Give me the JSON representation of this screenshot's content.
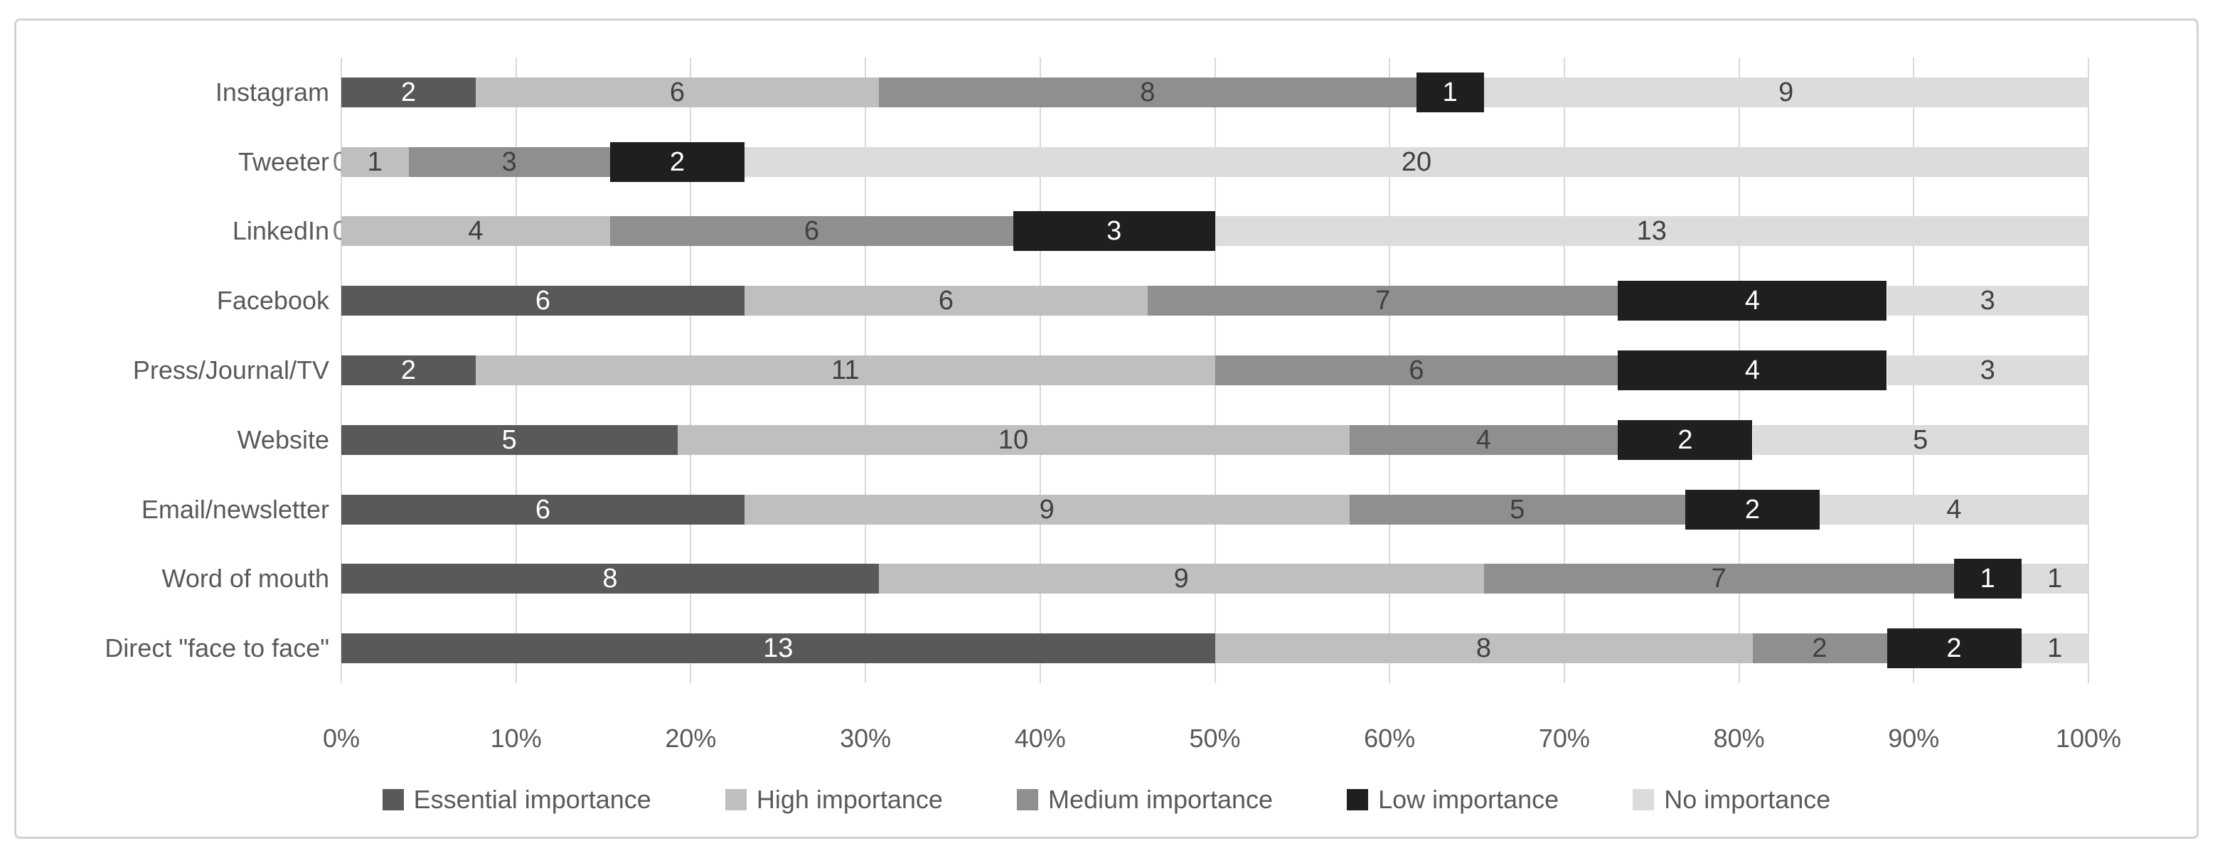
{
  "chart_data": {
    "type": "bar",
    "subtype": "stacked-100-horizontal",
    "title": "",
    "xlabel": "",
    "ylabel": "",
    "unit_total": 26,
    "grid": true,
    "legend_position": "bottom",
    "categories": [
      "Instagram",
      "Tweeter",
      "LinkedIn",
      "Facebook",
      "Press/Journal/TV",
      "Website",
      "Email/newsletter",
      "Word of mouth",
      "Direct \"face to face\""
    ],
    "series": [
      {
        "name": "Essential importance",
        "color": "#595959",
        "label_color": "#ffffff",
        "values": [
          2,
          0,
          0,
          6,
          2,
          5,
          6,
          8,
          13
        ]
      },
      {
        "name": "High importance",
        "color": "#bfbfbf",
        "label_color": "#404040",
        "values": [
          6,
          1,
          4,
          6,
          11,
          10,
          9,
          9,
          8
        ]
      },
      {
        "name": "Medium importance",
        "color": "#8f8f8f",
        "label_color": "#404040",
        "values": [
          8,
          3,
          6,
          7,
          6,
          4,
          5,
          7,
          2
        ]
      },
      {
        "name": "Low importance",
        "color": "#1f1f1f",
        "label_color": "#ffffff",
        "values": [
          1,
          2,
          3,
          4,
          4,
          2,
          2,
          1,
          2
        ]
      },
      {
        "name": "No importance",
        "color": "#dcdcdc",
        "label_color": "#404040",
        "values": [
          9,
          20,
          13,
          3,
          3,
          5,
          4,
          1,
          1
        ]
      }
    ],
    "x_axis": {
      "range_percent": [
        0,
        100
      ],
      "ticks": [
        "0%",
        "10%",
        "20%",
        "30%",
        "40%",
        "50%",
        "60%",
        "70%",
        "80%",
        "90%",
        "100%"
      ]
    },
    "colors": {
      "grid": "#d9d9d9",
      "frame_border": "#d2d2d2",
      "axis_text": "#595959",
      "category_text": "#595959",
      "legend_text": "#595959",
      "zero_label": "#808080",
      "background": "#ffffff"
    }
  }
}
